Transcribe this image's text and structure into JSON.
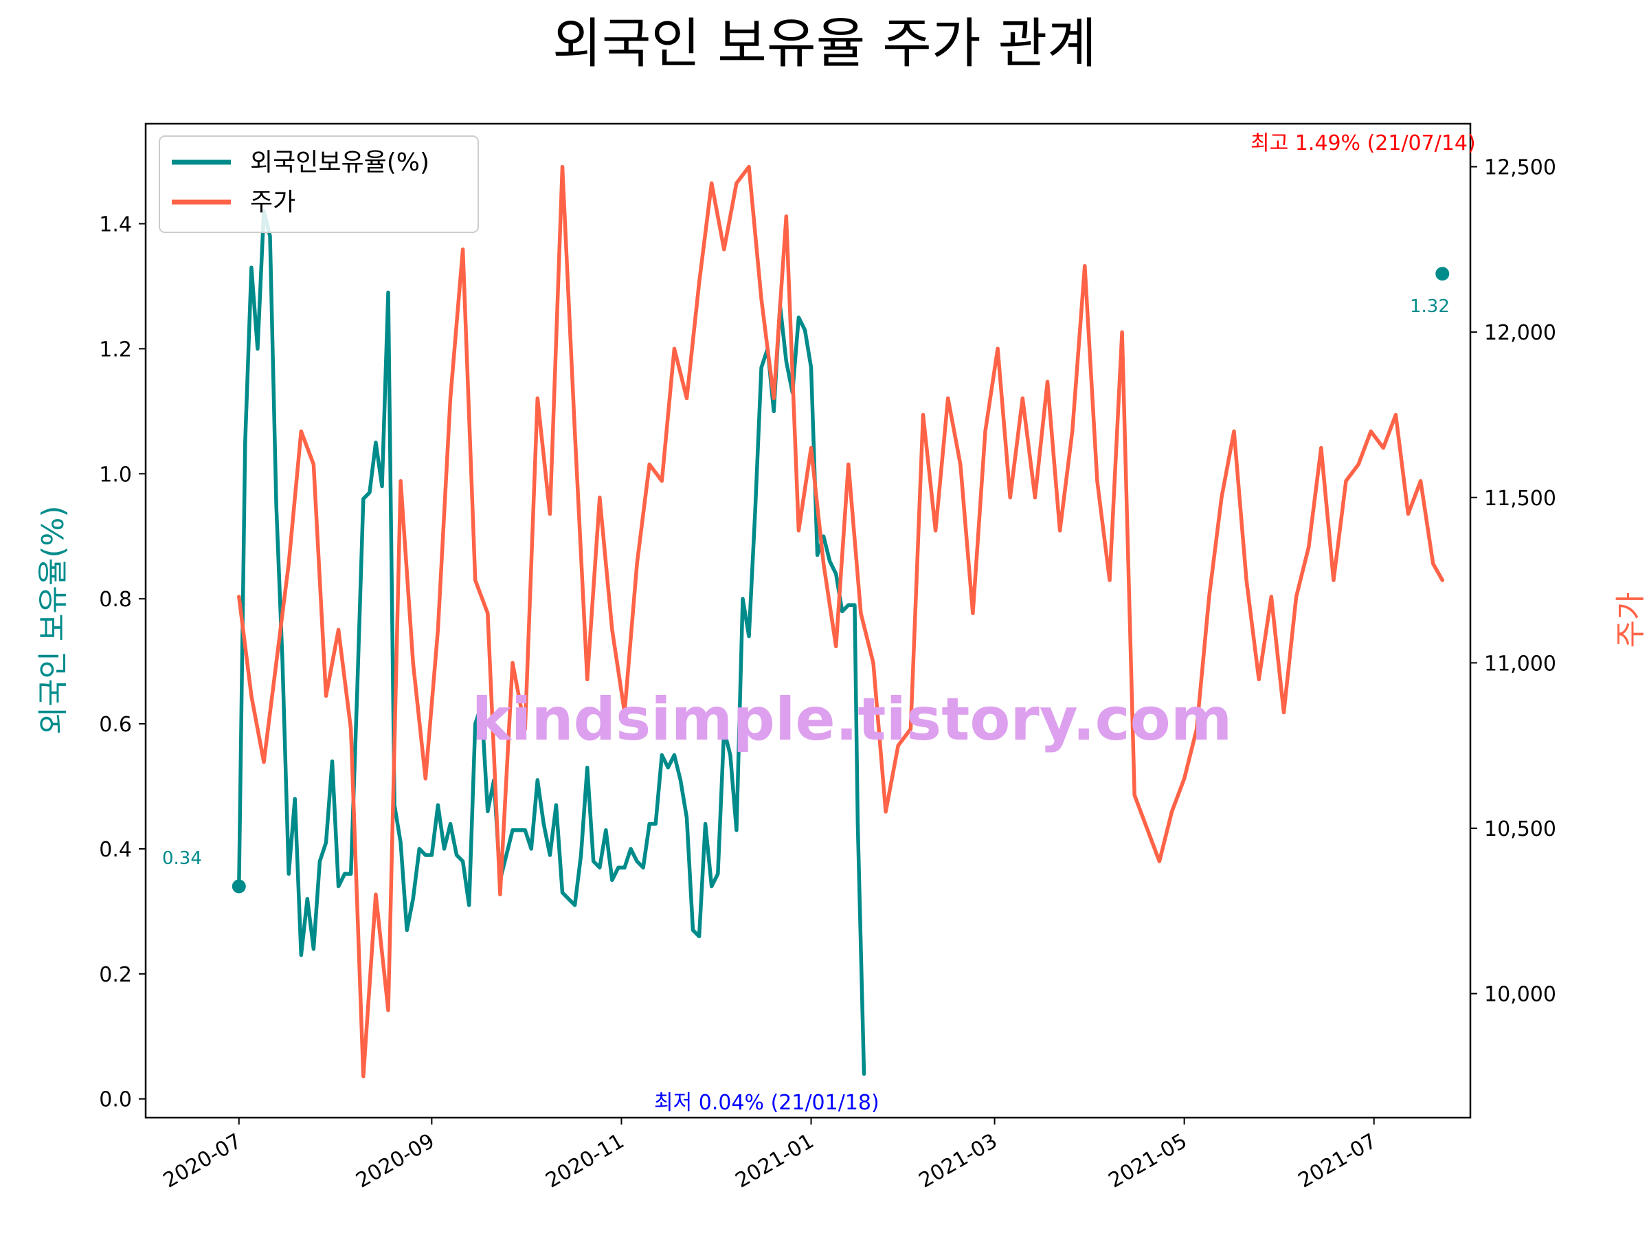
{
  "chart_data": {
    "type": "line",
    "title": "외국인 보유율 주가 관계",
    "ylabel_left": "외국인 보유율(%)",
    "ylabel_right": "주가",
    "colors": {
      "holding": "#008B8B",
      "price": "#FF6347",
      "max_note": "#FF0000",
      "min_note": "#0000FF",
      "watermark": "#DDA0EE"
    },
    "x_range": [
      "2020-06-01",
      "2021-08-01"
    ],
    "x_ticks": [
      {
        "date": "2020-07-01",
        "label": "2020-07"
      },
      {
        "date": "2020-09-01",
        "label": "2020-09"
      },
      {
        "date": "2020-11-01",
        "label": "2020-11"
      },
      {
        "date": "2021-01-01",
        "label": "2021-01"
      },
      {
        "date": "2021-03-01",
        "label": "2021-03"
      },
      {
        "date": "2021-05-01",
        "label": "2021-05"
      },
      {
        "date": "2021-07-01",
        "label": "2021-07"
      }
    ],
    "y_left": {
      "min": -0.03,
      "max": 1.56,
      "ticks": [
        0.0,
        0.2,
        0.4,
        0.6,
        0.8,
        1.0,
        1.2,
        1.4
      ],
      "tick_labels": [
        "0.0",
        "0.2",
        "0.4",
        "0.6",
        "0.8",
        "1.0",
        "1.2",
        "1.4"
      ]
    },
    "y_right": {
      "min": 9625,
      "max": 12630,
      "ticks": [
        10000,
        10500,
        11000,
        11500,
        12000,
        12500
      ],
      "tick_labels": [
        "10,000",
        "10,500",
        "11,000",
        "11,500",
        "12,000",
        "12,500"
      ]
    },
    "legend": {
      "position": "top-left",
      "entries": [
        "외국인보유율(%)",
        "주가"
      ]
    },
    "annotations": {
      "max": {
        "text": "최고 1.49% (21/07/14)",
        "date": "2021-07-14",
        "value": 1.49
      },
      "min": {
        "text": "최저 0.04% (21/01/18)",
        "date": "2021-01-18",
        "value": 0.04
      },
      "start": {
        "text": "0.34",
        "date": "2020-07-01",
        "value": 0.34
      },
      "end": {
        "text": "1.32",
        "date": "2021-07-23",
        "value": 1.32
      }
    },
    "watermark": "kindsimple.tistory.com",
    "series": [
      {
        "name": "외국인보유율(%)",
        "axis": "left",
        "points": [
          [
            "2020-07-01",
            0.34
          ],
          [
            "2020-07-03",
            1.05
          ],
          [
            "2020-07-05",
            1.33
          ],
          [
            "2020-07-07",
            1.2
          ],
          [
            "2020-07-09",
            1.42
          ],
          [
            "2020-07-11",
            1.38
          ],
          [
            "2020-07-13",
            0.95
          ],
          [
            "2020-07-15",
            0.7
          ],
          [
            "2020-07-17",
            0.36
          ],
          [
            "2020-07-19",
            0.48
          ],
          [
            "2020-07-21",
            0.23
          ],
          [
            "2020-07-23",
            0.32
          ],
          [
            "2020-07-25",
            0.24
          ],
          [
            "2020-07-27",
            0.38
          ],
          [
            "2020-07-29",
            0.41
          ],
          [
            "2020-07-31",
            0.54
          ],
          [
            "2020-08-02",
            0.34
          ],
          [
            "2020-08-04",
            0.36
          ],
          [
            "2020-08-06",
            0.36
          ],
          [
            "2020-08-08",
            0.65
          ],
          [
            "2020-08-10",
            0.96
          ],
          [
            "2020-08-12",
            0.97
          ],
          [
            "2020-08-14",
            1.05
          ],
          [
            "2020-08-16",
            0.98
          ],
          [
            "2020-08-18",
            1.29
          ],
          [
            "2020-08-20",
            0.47
          ],
          [
            "2020-08-22",
            0.41
          ],
          [
            "2020-08-24",
            0.27
          ],
          [
            "2020-08-26",
            0.32
          ],
          [
            "2020-08-28",
            0.4
          ],
          [
            "2020-08-30",
            0.39
          ],
          [
            "2020-09-01",
            0.39
          ],
          [
            "2020-09-03",
            0.47
          ],
          [
            "2020-09-05",
            0.4
          ],
          [
            "2020-09-07",
            0.44
          ],
          [
            "2020-09-09",
            0.39
          ],
          [
            "2020-09-11",
            0.38
          ],
          [
            "2020-09-13",
            0.31
          ],
          [
            "2020-09-15",
            0.6
          ],
          [
            "2020-09-17",
            0.63
          ],
          [
            "2020-09-19",
            0.46
          ],
          [
            "2020-09-21",
            0.51
          ],
          [
            "2020-09-23",
            0.35
          ],
          [
            "2020-09-25",
            0.39
          ],
          [
            "2020-09-27",
            0.43
          ],
          [
            "2020-09-29",
            0.43
          ],
          [
            "2020-10-01",
            0.43
          ],
          [
            "2020-10-03",
            0.4
          ],
          [
            "2020-10-05",
            0.51
          ],
          [
            "2020-10-07",
            0.44
          ],
          [
            "2020-10-09",
            0.39
          ],
          [
            "2020-10-11",
            0.47
          ],
          [
            "2020-10-13",
            0.33
          ],
          [
            "2020-10-15",
            0.32
          ],
          [
            "2020-10-17",
            0.31
          ],
          [
            "2020-10-19",
            0.39
          ],
          [
            "2020-10-21",
            0.53
          ],
          [
            "2020-10-23",
            0.38
          ],
          [
            "2020-10-25",
            0.37
          ],
          [
            "2020-10-27",
            0.43
          ],
          [
            "2020-10-29",
            0.35
          ],
          [
            "2020-10-31",
            0.37
          ],
          [
            "2020-11-02",
            0.37
          ],
          [
            "2020-11-04",
            0.4
          ],
          [
            "2020-11-06",
            0.38
          ],
          [
            "2020-11-08",
            0.37
          ],
          [
            "2020-11-10",
            0.44
          ],
          [
            "2020-11-12",
            0.44
          ],
          [
            "2020-11-14",
            0.55
          ],
          [
            "2020-11-16",
            0.53
          ],
          [
            "2020-11-18",
            0.55
          ],
          [
            "2020-11-20",
            0.51
          ],
          [
            "2020-11-22",
            0.45
          ],
          [
            "2020-11-24",
            0.27
          ],
          [
            "2020-11-26",
            0.26
          ],
          [
            "2020-11-28",
            0.44
          ],
          [
            "2020-11-30",
            0.34
          ],
          [
            "2020-12-02",
            0.36
          ],
          [
            "2020-12-04",
            0.59
          ],
          [
            "2020-12-06",
            0.55
          ],
          [
            "2020-12-08",
            0.43
          ],
          [
            "2020-12-10",
            0.8
          ],
          [
            "2020-12-12",
            0.74
          ],
          [
            "2020-12-14",
            0.94
          ],
          [
            "2020-12-16",
            1.17
          ],
          [
            "2020-12-18",
            1.2
          ],
          [
            "2020-12-20",
            1.1
          ],
          [
            "2020-12-22",
            1.27
          ],
          [
            "2020-12-24",
            1.18
          ],
          [
            "2020-12-26",
            1.13
          ],
          [
            "2020-12-28",
            1.25
          ],
          [
            "2020-12-30",
            1.23
          ],
          [
            "2021-01-01",
            1.17
          ],
          [
            "2021-01-03",
            0.87
          ],
          [
            "2021-01-05",
            0.9
          ],
          [
            "2021-01-07",
            0.86
          ],
          [
            "2021-01-09",
            0.84
          ],
          [
            "2021-01-11",
            0.78
          ],
          [
            "2021-01-13",
            0.79
          ],
          [
            "2021-01-15",
            0.79
          ],
          [
            "2021-01-16",
            0.44
          ],
          [
            "2021-01-18",
            0.04
          ]
        ]
      },
      {
        "name": "주가",
        "axis": "right",
        "points": [
          [
            "2020-07-01",
            11200
          ],
          [
            "2020-07-05",
            10900
          ],
          [
            "2020-07-09",
            10700
          ],
          [
            "2020-07-13",
            11000
          ],
          [
            "2020-07-17",
            11300
          ],
          [
            "2020-07-21",
            11700
          ],
          [
            "2020-07-25",
            11600
          ],
          [
            "2020-07-29",
            10900
          ],
          [
            "2020-08-02",
            11100
          ],
          [
            "2020-08-06",
            10800
          ],
          [
            "2020-08-10",
            9750
          ],
          [
            "2020-08-14",
            10300
          ],
          [
            "2020-08-18",
            9950
          ],
          [
            "2020-08-22",
            11550
          ],
          [
            "2020-08-26",
            11000
          ],
          [
            "2020-08-30",
            10650
          ],
          [
            "2020-09-03",
            11100
          ],
          [
            "2020-09-07",
            11800
          ],
          [
            "2020-09-11",
            12250
          ],
          [
            "2020-09-15",
            11250
          ],
          [
            "2020-09-19",
            11150
          ],
          [
            "2020-09-23",
            10300
          ],
          [
            "2020-09-27",
            11000
          ],
          [
            "2020-10-01",
            10800
          ],
          [
            "2020-10-05",
            11800
          ],
          [
            "2020-10-09",
            11450
          ],
          [
            "2020-10-13",
            12500
          ],
          [
            "2020-10-17",
            11700
          ],
          [
            "2020-10-21",
            10950
          ],
          [
            "2020-10-25",
            11500
          ],
          [
            "2020-10-29",
            11100
          ],
          [
            "2020-11-02",
            10850
          ],
          [
            "2020-11-06",
            11300
          ],
          [
            "2020-11-10",
            11600
          ],
          [
            "2020-11-14",
            11550
          ],
          [
            "2020-11-18",
            11950
          ],
          [
            "2020-11-22",
            11800
          ],
          [
            "2020-11-26",
            12150
          ],
          [
            "2020-11-30",
            12450
          ],
          [
            "2020-12-04",
            12250
          ],
          [
            "2020-12-08",
            12450
          ],
          [
            "2020-12-12",
            12500
          ],
          [
            "2020-12-16",
            12100
          ],
          [
            "2020-12-20",
            11800
          ],
          [
            "2020-12-24",
            12350
          ],
          [
            "2020-12-28",
            11400
          ],
          [
            "2021-01-01",
            11650
          ],
          [
            "2021-01-05",
            11300
          ],
          [
            "2021-01-09",
            11050
          ],
          [
            "2021-01-13",
            11600
          ],
          [
            "2021-01-17",
            11150
          ],
          [
            "2021-01-21",
            11000
          ],
          [
            "2021-01-25",
            10550
          ],
          [
            "2021-01-29",
            10750
          ],
          [
            "2021-02-02",
            10800
          ],
          [
            "2021-02-06",
            11750
          ],
          [
            "2021-02-10",
            11400
          ],
          [
            "2021-02-14",
            11800
          ],
          [
            "2021-02-18",
            11600
          ],
          [
            "2021-02-22",
            11150
          ],
          [
            "2021-02-26",
            11700
          ],
          [
            "2021-03-02",
            11950
          ],
          [
            "2021-03-06",
            11500
          ],
          [
            "2021-03-10",
            11800
          ],
          [
            "2021-03-14",
            11500
          ],
          [
            "2021-03-18",
            11850
          ],
          [
            "2021-03-22",
            11400
          ],
          [
            "2021-03-26",
            11700
          ],
          [
            "2021-03-30",
            12200
          ],
          [
            "2021-04-03",
            11550
          ],
          [
            "2021-04-07",
            11250
          ],
          [
            "2021-04-11",
            12000
          ],
          [
            "2021-04-15",
            10600
          ],
          [
            "2021-04-19",
            10500
          ],
          [
            "2021-04-23",
            10400
          ],
          [
            "2021-04-27",
            10550
          ],
          [
            "2021-05-01",
            10650
          ],
          [
            "2021-05-05",
            10800
          ],
          [
            "2021-05-09",
            11200
          ],
          [
            "2021-05-13",
            11500
          ],
          [
            "2021-05-17",
            11700
          ],
          [
            "2021-05-21",
            11250
          ],
          [
            "2021-05-25",
            10950
          ],
          [
            "2021-05-29",
            11200
          ],
          [
            "2021-06-02",
            10850
          ],
          [
            "2021-06-06",
            11200
          ],
          [
            "2021-06-10",
            11350
          ],
          [
            "2021-06-14",
            11650
          ],
          [
            "2021-06-18",
            11250
          ],
          [
            "2021-06-22",
            11550
          ],
          [
            "2021-06-26",
            11600
          ],
          [
            "2021-06-30",
            11700
          ],
          [
            "2021-07-04",
            11650
          ],
          [
            "2021-07-08",
            11750
          ],
          [
            "2021-07-12",
            11450
          ],
          [
            "2021-07-16",
            11550
          ],
          [
            "2021-07-20",
            11300
          ],
          [
            "2021-07-23",
            11250
          ]
        ]
      }
    ]
  }
}
